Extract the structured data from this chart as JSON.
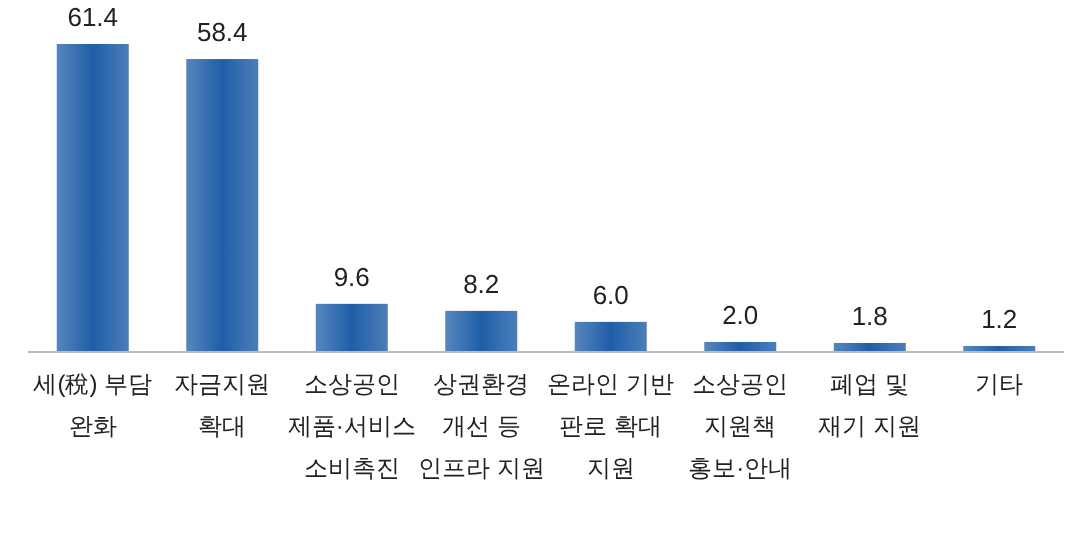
{
  "chart_data": {
    "type": "bar",
    "categories": [
      "세(稅) 부담\n완화",
      "자금지원\n확대",
      "소상공인\n제품·서비스\n소비촉진",
      "상권환경\n개선 등\n인프라 지원",
      "온라인 기반\n판로 확대\n지원",
      "소상공인\n지원책\n홍보·안내",
      "폐업 및\n재기 지원",
      "기타"
    ],
    "values": [
      61.4,
      58.4,
      9.6,
      8.2,
      6.0,
      2.0,
      1.8,
      1.2
    ],
    "value_labels": [
      "61.4",
      "58.4",
      "9.6",
      "8.2",
      "6.0",
      "2.0",
      "1.8",
      "1.2"
    ],
    "color": "#1f5ea8"
  }
}
